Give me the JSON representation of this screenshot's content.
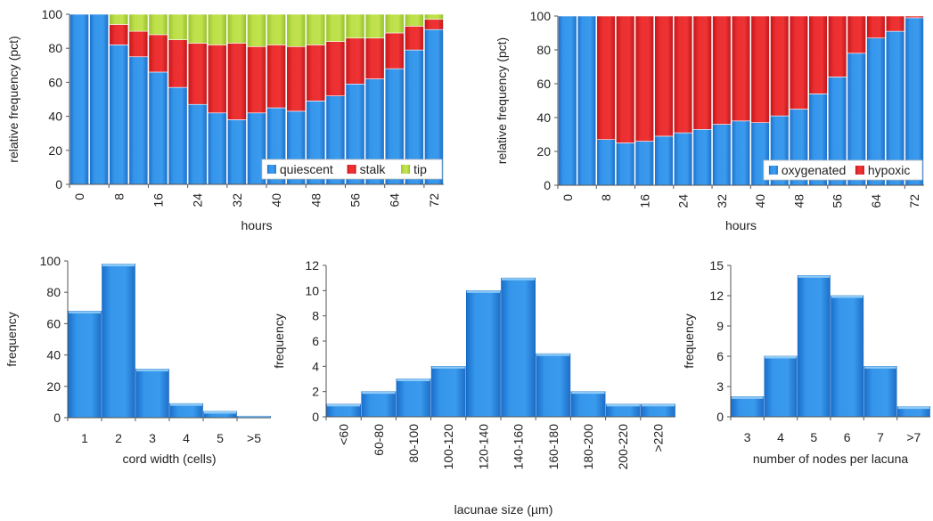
{
  "colors": {
    "blue": "#2f8fe6",
    "blue_dark": "#1566c0",
    "blue_light": "#8ccaf7",
    "red": "#e8262a",
    "red_dark": "#b01015",
    "green": "#b2d840",
    "green_dark": "#86ac22"
  },
  "figure_label": "lacunae size (µm)",
  "chart_data": [
    {
      "id": "A",
      "type": "bar",
      "stacked": true,
      "x": [
        0,
        4,
        8,
        12,
        16,
        20,
        24,
        28,
        32,
        36,
        40,
        44,
        48,
        52,
        56,
        60,
        64,
        68,
        72
      ],
      "xticks": [
        "0",
        "8",
        "16",
        "24",
        "32",
        "40",
        "48",
        "56",
        "64",
        "72"
      ],
      "xlabel": "hours",
      "ylabel": "relative frequency (pct)",
      "ylim": [
        0,
        100
      ],
      "yticks": [
        "0",
        "20",
        "40",
        "60",
        "80",
        "100"
      ],
      "legend": "bottom-right",
      "series": [
        {
          "name": "quiescent",
          "color": "blue",
          "values": [
            100,
            100,
            82,
            75,
            66,
            57,
            47,
            42,
            38,
            42,
            45,
            43,
            49,
            52,
            59,
            62,
            68,
            79,
            91
          ]
        },
        {
          "name": "stalk",
          "color": "red",
          "values": [
            0,
            0,
            12,
            15,
            22,
            28,
            36,
            40,
            45,
            39,
            37,
            38,
            33,
            32,
            27,
            24,
            21,
            14,
            6
          ]
        },
        {
          "name": "tip",
          "color": "green",
          "values": [
            0,
            0,
            6,
            10,
            12,
            15,
            17,
            18,
            17,
            19,
            18,
            19,
            18,
            16,
            14,
            14,
            11,
            7,
            3
          ]
        }
      ]
    },
    {
      "id": "B",
      "type": "bar",
      "stacked": true,
      "x": [
        0,
        4,
        8,
        12,
        16,
        20,
        24,
        28,
        32,
        36,
        40,
        44,
        48,
        52,
        56,
        60,
        64,
        68,
        72
      ],
      "xticks": [
        "0",
        "8",
        "16",
        "24",
        "32",
        "40",
        "48",
        "56",
        "64",
        "72"
      ],
      "xlabel": "hours",
      "ylabel": "relative frequency (pct)",
      "ylim": [
        0,
        100
      ],
      "yticks": [
        "0",
        "20",
        "40",
        "60",
        "80",
        "100"
      ],
      "legend": "bottom-right",
      "series": [
        {
          "name": "oxygenated",
          "color": "blue",
          "values": [
            100,
            100,
            27,
            25,
            26,
            29,
            31,
            33,
            36,
            38,
            37,
            41,
            45,
            54,
            64,
            78,
            87,
            91,
            99
          ]
        },
        {
          "name": "hypoxic",
          "color": "red",
          "values": [
            0,
            0,
            73,
            75,
            74,
            71,
            69,
            67,
            64,
            62,
            63,
            59,
            55,
            46,
            36,
            22,
            13,
            9,
            1
          ]
        }
      ]
    },
    {
      "id": "C",
      "type": "bar",
      "categories": [
        "1",
        "2",
        "3",
        "4",
        "5",
        ">5"
      ],
      "values": [
        68,
        98,
        31,
        9,
        4,
        1
      ],
      "xlabel": "cord width (cells)",
      "ylabel": "frequency",
      "ylim": [
        0,
        100
      ],
      "yticks": [
        "0",
        "20",
        "40",
        "60",
        "80",
        "100"
      ]
    },
    {
      "id": "D",
      "type": "bar",
      "categories": [
        "<60",
        "60-80",
        "80-100",
        "100-120",
        "120-140",
        "140-160",
        "160-180",
        "180-200",
        "200-220",
        ">220"
      ],
      "values": [
        1,
        2,
        3,
        4,
        10,
        11,
        5,
        2,
        1,
        1
      ],
      "xlabel": "",
      "ylabel": "frequency",
      "ylim": [
        0,
        12
      ],
      "yticks": [
        "0",
        "2",
        "4",
        "6",
        "8",
        "10",
        "12"
      ]
    },
    {
      "id": "E",
      "type": "bar",
      "categories": [
        "3",
        "4",
        "5",
        "6",
        "7",
        ">7"
      ],
      "values": [
        2,
        6,
        14,
        12,
        5,
        1
      ],
      "xlabel": "number of nodes per lacuna",
      "ylabel": "frequency",
      "ylim": [
        0,
        15
      ],
      "yticks": [
        "0",
        "3",
        "6",
        "9",
        "12",
        "15"
      ]
    }
  ]
}
